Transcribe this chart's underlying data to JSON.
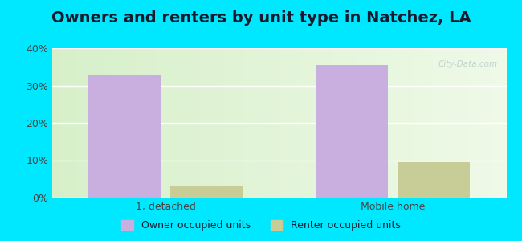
{
  "title": "Owners and renters by unit type in Natchez, LA",
  "categories": [
    "1, detached",
    "Mobile home"
  ],
  "owner_values": [
    33.0,
    35.5
  ],
  "renter_values": [
    3.0,
    9.5
  ],
  "owner_color": "#c9aee0",
  "renter_color": "#c8cc96",
  "ylim": [
    0,
    40
  ],
  "yticks": [
    0,
    10,
    20,
    30,
    40
  ],
  "ytick_labels": [
    "0%",
    "10%",
    "20%",
    "30%",
    "40%"
  ],
  "outer_bg": "#00e8ff",
  "plot_bg_left": "#d4eec4",
  "plot_bg_right": "#f0f8ec",
  "bar_width": 0.32,
  "title_fontsize": 14,
  "legend_labels": [
    "Owner occupied units",
    "Renter occupied units"
  ],
  "watermark": "City-Data.com"
}
